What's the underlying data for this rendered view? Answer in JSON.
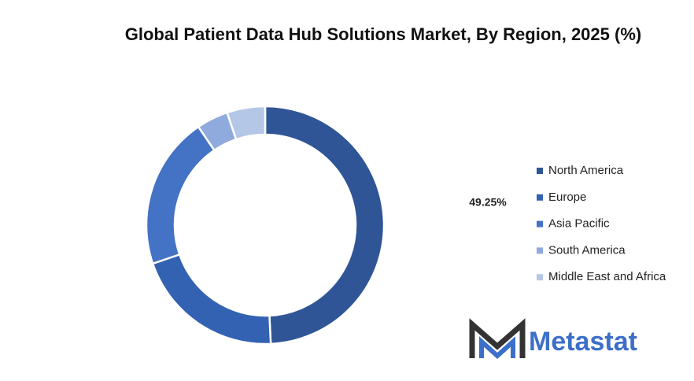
{
  "chart_data": {
    "type": "donut",
    "title": "Global Patient Data Hub Solutions Market, By Region, 2025 (%)",
    "categories": [
      "North America",
      "Europe",
      "Asia Pacific",
      "South America",
      "Middle East and Africa"
    ],
    "values": [
      49.25,
      20.5,
      20.75,
      4.3,
      5.2
    ],
    "value_labels": [
      "49.25%",
      null,
      null,
      null,
      null
    ],
    "colors": [
      "#2f5597",
      "#3462b2",
      "#4472c4",
      "#8faadc",
      "#b4c7e7"
    ],
    "legend": "right"
  },
  "logo": "Metastat"
}
